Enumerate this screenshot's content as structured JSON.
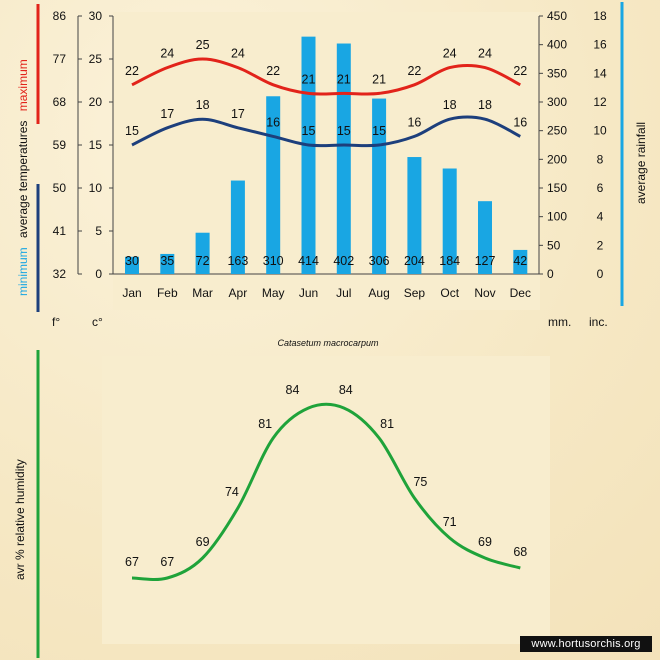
{
  "chart_data": [
    {
      "type": "bar+line",
      "categories": [
        "Jan",
        "Feb",
        "Mar",
        "Apr",
        "May",
        "Jun",
        "Jul",
        "Aug",
        "Sep",
        "Oct",
        "Nov",
        "Dec"
      ],
      "series": [
        {
          "name": "average rainfall",
          "type": "bar",
          "values": [
            30,
            35,
            72,
            163,
            310,
            414,
            402,
            306,
            204,
            184,
            127,
            42
          ],
          "color": "#19a6e3"
        },
        {
          "name": "maximum",
          "type": "line",
          "values": [
            22,
            24,
            25,
            24,
            22,
            21,
            21,
            21,
            22,
            24,
            24,
            22
          ],
          "color": "#e2231a"
        },
        {
          "name": "minimum",
          "type": "line",
          "values": [
            15,
            17,
            18,
            17,
            16,
            15,
            15,
            15,
            16,
            18,
            18,
            16
          ],
          "color": "#1d3f7c"
        }
      ],
      "title": "Catasetum macrocarpum",
      "left_axes": {
        "fahrenheit_ticks": [
          "86",
          "77",
          "68",
          "59",
          "50",
          "41",
          "32"
        ],
        "celsius_ticks": [
          "30",
          "25",
          "20",
          "15",
          "10",
          "5",
          "0"
        ],
        "celsius_range": [
          0,
          30
        ],
        "label_min": "minimum",
        "label_avg": "average temperatures",
        "label_max": "maximum",
        "unit_f": "f°",
        "unit_c": "c°"
      },
      "right_axes": {
        "mm_ticks": [
          "450",
          "400",
          "350",
          "300",
          "250",
          "200",
          "150",
          "100",
          "50",
          "0"
        ],
        "inch_ticks": [
          "18",
          "16",
          "14",
          "12",
          "10",
          "8",
          "6",
          "4",
          "2",
          "0"
        ],
        "mm_range": [
          0,
          450
        ],
        "label": "average rainfall",
        "unit_mm": "mm.",
        "unit_in": "inc."
      },
      "colors": {
        "rain_bar": "#19a6e3",
        "max_line": "#e2231a",
        "min_line": "#1d3f7c",
        "plot_bg": "#f7eccc"
      }
    },
    {
      "type": "line",
      "categories": [
        "Jan",
        "Feb",
        "Mar",
        "Apr",
        "May",
        "Jun",
        "Jul",
        "Aug",
        "Sep",
        "Oct",
        "Nov",
        "Dec"
      ],
      "values": [
        67,
        67,
        69,
        74,
        81,
        84,
        84,
        81,
        75,
        71,
        69,
        68
      ],
      "ylabel": "avr % relative humidity",
      "color": "#1fa33a"
    }
  ],
  "watermark": "www.hortusorchis.org"
}
